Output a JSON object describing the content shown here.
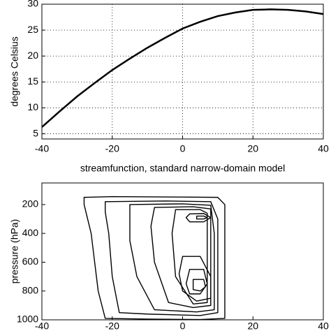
{
  "chart_data": [
    {
      "type": "line",
      "ylabel": "degrees Celsius",
      "x": [
        -40,
        -35,
        -30,
        -25,
        -20,
        -15,
        -10,
        -5,
        0,
        5,
        10,
        15,
        20,
        25,
        30,
        35,
        40
      ],
      "series": [
        {
          "color": "#000000",
          "values": [
            6.3,
            9.3,
            12.2,
            14.8,
            17.3,
            19.5,
            21.6,
            23.5,
            25.3,
            26.6,
            27.7,
            28.4,
            28.9,
            29.0,
            28.9,
            28.6,
            28.1
          ]
        }
      ],
      "xlim": [
        -40,
        40
      ],
      "xticks": [
        -40,
        -20,
        0,
        20,
        40
      ],
      "ylim": [
        4,
        30
      ],
      "yticks": [
        5,
        10,
        15,
        20,
        25,
        30
      ],
      "grid": true
    },
    {
      "type": "contour",
      "title": "streamfunction, standard narrow-domain model",
      "ylabel": "pressure (hPa)",
      "contours": [
        {
          "x": [
            -28,
            -20,
            0,
            10,
            12,
            12,
            12,
            12,
            5,
            -10,
            -22,
            -24,
            -25,
            -26,
            -28
          ],
          "y": [
            150,
            145,
            148,
            150,
            200,
            500,
            800,
            990,
            998,
            995,
            990,
            800,
            600,
            400,
            200
          ]
        },
        {
          "x": [
            -22,
            -5,
            8,
            10,
            10,
            10,
            5,
            -10,
            -18,
            -20,
            -21,
            -22
          ],
          "y": [
            180,
            175,
            180,
            300,
            600,
            950,
            970,
            960,
            950,
            700,
            400,
            250
          ]
        },
        {
          "x": [
            -15,
            0,
            8,
            9,
            9,
            4,
            -8,
            -13,
            -15,
            -15
          ],
          "y": [
            200,
            195,
            205,
            400,
            930,
            945,
            930,
            700,
            450,
            280
          ]
        },
        {
          "x": [
            -8,
            3,
            8,
            8,
            3,
            -4,
            -8,
            -9
          ],
          "y": [
            220,
            215,
            230,
            900,
            915,
            880,
            600,
            350
          ]
        },
        {
          "x": [
            -2,
            5,
            7,
            7,
            3,
            -2,
            -3
          ],
          "y": [
            235,
            235,
            260,
            880,
            890,
            700,
            400
          ]
        },
        {
          "x": [
            2,
            6,
            8,
            6,
            2,
            1
          ],
          "y": [
            265,
            262,
            290,
            320,
            320,
            290
          ]
        },
        {
          "x": [
            4,
            6,
            7,
            6,
            4
          ],
          "y": [
            280,
            280,
            290,
            300,
            300
          ]
        },
        {
          "x": [
            0,
            5,
            8,
            8,
            4,
            0,
            -1
          ],
          "y": [
            560,
            560,
            700,
            850,
            870,
            800,
            680
          ]
        },
        {
          "x": [
            2,
            6,
            7,
            5,
            2,
            1
          ],
          "y": [
            650,
            650,
            750,
            820,
            820,
            750
          ]
        },
        {
          "x": [
            3,
            6,
            6.5,
            5,
            3
          ],
          "y": [
            720,
            720,
            770,
            800,
            790
          ]
        }
      ],
      "color": "#000000",
      "xlim": [
        -40,
        40
      ],
      "xticks": [
        -40,
        -20,
        0,
        20,
        40
      ],
      "ylim": [
        1000,
        50
      ],
      "yticks": [
        200,
        400,
        600,
        800,
        1000
      ],
      "grid": false
    }
  ]
}
